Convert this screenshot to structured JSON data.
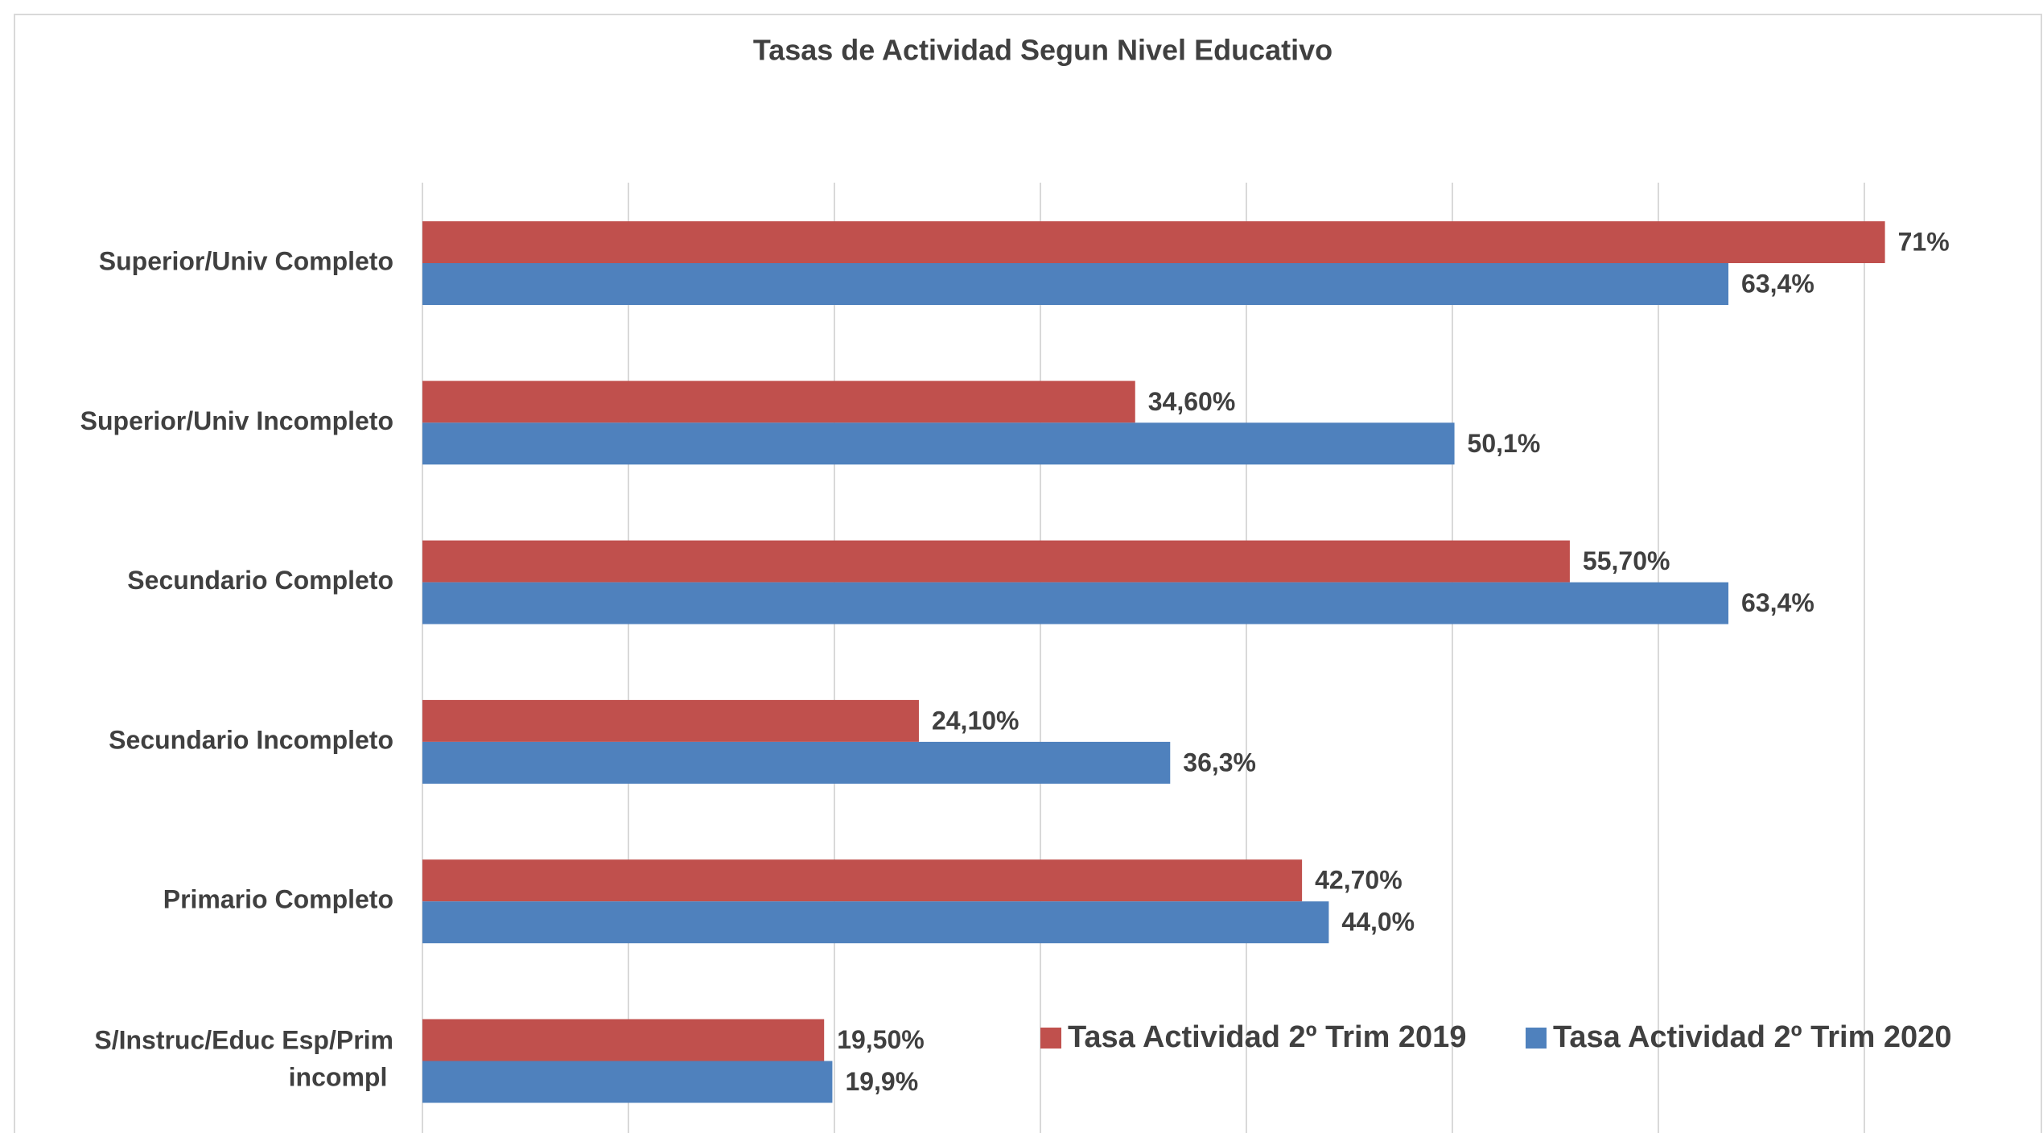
{
  "chart_data": {
    "type": "hbar",
    "title": "Tasas de Actividad Segun Nivel Educativo",
    "categories": [
      "Superior/Univ Completo",
      "Superior/Univ Incompleto",
      "Secundario Completo",
      "Secundario Incompleto",
      "Primario Completo",
      "S/Instruc/Educ Esp/Prim incompl"
    ],
    "series": [
      {
        "name": "Tasa Actividad 2º Trim 2019",
        "color": "#c0504d",
        "values": [
          71,
          34.6,
          55.7,
          24.1,
          42.7,
          19.5
        ],
        "value_labels": [
          "71%",
          "34,60%",
          "55,70%",
          "24,10%",
          "42,70%",
          "19,50%"
        ]
      },
      {
        "name": "Tasa Actividad 2º Trim 2020",
        "color": "#4f81bd",
        "values": [
          63.4,
          50.1,
          63.4,
          36.3,
          44.0,
          19.9
        ],
        "value_labels": [
          "63,4%",
          "50,1%",
          "63,4%",
          "36,3%",
          "44,0%",
          "19,9%"
        ]
      }
    ],
    "xlim": [
      0,
      70
    ],
    "xticks": [
      0,
      10,
      20,
      30,
      40,
      50,
      60,
      70
    ],
    "grid": true,
    "legend": "bottom-right"
  }
}
